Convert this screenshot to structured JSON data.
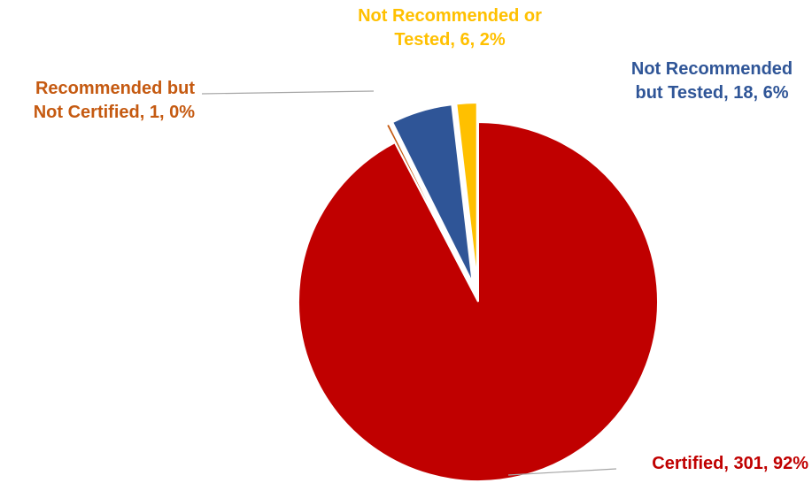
{
  "chart_data": {
    "type": "pie",
    "title": "",
    "slices": [
      {
        "name": "Certified",
        "value": 301,
        "percent": "92%",
        "label_lines": [
          "Certified, 301, 92%"
        ],
        "color": "#C00000",
        "exploded": false
      },
      {
        "name": "Recommended but Not Certified",
        "value": 1,
        "percent": "0%",
        "label_lines": [
          "Recommended but",
          "Not Certified, 1, 0%"
        ],
        "color": "#C55A11",
        "exploded": true
      },
      {
        "name": "Not Recommended but Tested",
        "value": 18,
        "percent": "6%",
        "label_lines": [
          "Not Recommended",
          "but Tested, 18, 6%"
        ],
        "color": "#2F5597",
        "exploded": true
      },
      {
        "name": "Not Recommended or Tested",
        "value": 6,
        "percent": "2%",
        "label_lines": [
          "Not Recommended or",
          "Tested, 6, 2%"
        ],
        "color": "#FFC000",
        "exploded": true
      }
    ],
    "legend": "none",
    "data_labels": "outside with leader lines"
  }
}
